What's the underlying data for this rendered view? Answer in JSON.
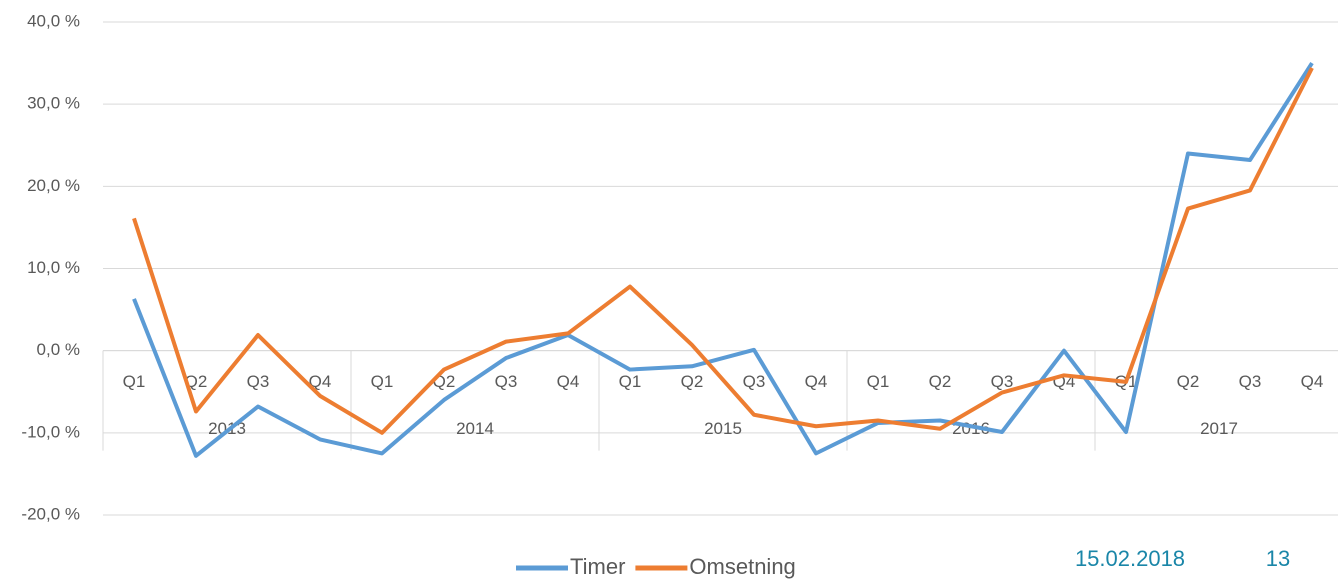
{
  "chart_data": {
    "type": "line",
    "categories": [
      "Q1",
      "Q2",
      "Q3",
      "Q4",
      "Q1",
      "Q2",
      "Q3",
      "Q4",
      "Q1",
      "Q2",
      "Q3",
      "Q4",
      "Q1",
      "Q2",
      "Q3",
      "Q4",
      "Q1",
      "Q2",
      "Q3",
      "Q4"
    ],
    "category_groups": [
      "2013",
      "2014",
      "2015",
      "2016",
      "2017"
    ],
    "series": [
      {
        "name": "Timer",
        "color": "#5b9bd5",
        "values": [
          6.3,
          -12.8,
          -6.8,
          -10.8,
          -12.5,
          -6.0,
          -0.9,
          1.9,
          -2.3,
          -1.9,
          0.1,
          -12.5,
          -8.8,
          -8.5,
          -9.9,
          0.0,
          -9.9,
          24.0,
          23.2,
          35.0
        ]
      },
      {
        "name": "Omsetning",
        "color": "#ed7d31",
        "values": [
          16.1,
          -7.4,
          1.9,
          -5.5,
          -10.0,
          -2.3,
          1.1,
          2.1,
          7.8,
          0.7,
          -7.8,
          -9.2,
          -8.5,
          -9.5,
          -5.1,
          -3.0,
          -3.8,
          17.3,
          19.5,
          34.4
        ]
      }
    ],
    "ylim": [
      -20,
      40
    ],
    "yticks": [
      {
        "value": -20,
        "label": "-20,0 %"
      },
      {
        "value": -10,
        "label": "-10,0 %"
      },
      {
        "value": 0,
        "label": "0,0 %"
      },
      {
        "value": 10,
        "label": "10,0 %"
      },
      {
        "value": 20,
        "label": "20,0 %"
      },
      {
        "value": 30,
        "label": "30,0 %"
      },
      {
        "value": 40,
        "label": "40,0 %"
      }
    ],
    "grid": true,
    "legend": "bottom"
  },
  "footer": {
    "date": "15.02.2018",
    "page": "13"
  }
}
